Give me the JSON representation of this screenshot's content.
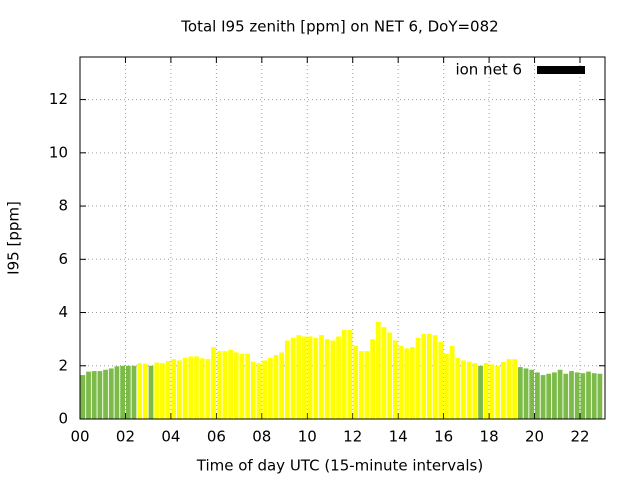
{
  "chart_data": {
    "type": "bar",
    "title": "Total I95 zenith [ppm] on NET 6, DoY=082",
    "x_label": "Time of day UTC (15-minute intervals)",
    "y_label": "I95 [ppm]",
    "x": [
      0,
      0.25,
      0.5,
      0.75,
      1,
      1.25,
      1.5,
      1.75,
      2,
      2.25,
      2.5,
      2.75,
      3,
      3.25,
      3.5,
      3.75,
      4,
      4.25,
      4.5,
      4.75,
      5,
      5.25,
      5.5,
      5.75,
      6,
      6.25,
      6.5,
      6.75,
      7,
      7.25,
      7.5,
      7.75,
      8,
      8.25,
      8.5,
      8.75,
      9,
      9.25,
      9.5,
      9.75,
      10,
      10.25,
      10.5,
      10.75,
      11,
      11.25,
      11.5,
      11.75,
      12,
      12.25,
      12.5,
      12.75,
      13,
      13.25,
      13.5,
      13.75,
      14,
      14.25,
      14.5,
      14.75,
      15,
      15.25,
      15.5,
      15.75,
      16,
      16.25,
      16.5,
      16.75,
      17,
      17.25,
      17.5,
      17.75,
      18,
      18.25,
      18.5,
      18.75,
      19,
      19.25,
      19.5,
      19.75,
      20,
      20.25,
      20.5,
      20.75,
      21,
      21.25,
      21.5,
      21.75,
      22,
      22.25,
      22.5,
      22.75
    ],
    "series": [
      {
        "name": "ion net 6",
        "color": "#000000",
        "values": [
          1.65,
          1.78,
          1.8,
          1.8,
          1.85,
          1.9,
          1.98,
          2.0,
          2.0,
          2.0,
          2.1,
          2.08,
          2.0,
          2.12,
          2.1,
          2.18,
          2.25,
          2.2,
          2.3,
          2.35,
          2.35,
          2.28,
          2.25,
          2.7,
          2.55,
          2.55,
          2.6,
          2.5,
          2.45,
          2.45,
          2.15,
          2.1,
          2.2,
          2.3,
          2.4,
          2.5,
          2.95,
          3.05,
          3.15,
          3.1,
          3.1,
          3.05,
          3.15,
          3.0,
          2.95,
          3.1,
          3.35,
          3.35,
          2.75,
          2.55,
          2.55,
          3.0,
          3.65,
          3.45,
          3.25,
          2.95,
          2.75,
          2.65,
          2.7,
          3.05,
          3.2,
          3.2,
          3.15,
          2.9,
          2.45,
          2.75,
          2.3,
          2.2,
          2.15,
          2.1,
          2.0,
          2.1,
          2.05,
          2.0,
          2.15,
          2.25,
          2.25,
          1.95,
          1.9,
          1.85,
          1.75,
          1.65,
          1.7,
          1.75,
          1.85,
          1.7,
          1.8,
          1.75,
          1.72,
          1.78,
          1.72,
          1.7
        ],
        "bar_colors": [
          "#7cbb4a",
          "#7cbb4a",
          "#7cbb4a",
          "#7cbb4a",
          "#7cbb4a",
          "#7cbb4a",
          "#7cbb4a",
          "#7cbb4a",
          "#7cbb4a",
          "#7cbb4a",
          "#ffff00",
          "#ffff00",
          "#7cbb4a",
          "#ffff00",
          "#ffff00",
          "#ffff00",
          "#ffff00",
          "#ffff00",
          "#ffff00",
          "#ffff00",
          "#ffff00",
          "#ffff00",
          "#ffff00",
          "#ffff00",
          "#ffff00",
          "#ffff00",
          "#ffff00",
          "#ffff00",
          "#ffff00",
          "#ffff00",
          "#ffff00",
          "#ffff00",
          "#ffff00",
          "#ffff00",
          "#ffff00",
          "#ffff00",
          "#ffff00",
          "#ffff00",
          "#ffff00",
          "#ffff00",
          "#ffff00",
          "#ffff00",
          "#ffff00",
          "#ffff00",
          "#ffff00",
          "#ffff00",
          "#ffff00",
          "#ffff00",
          "#ffff00",
          "#ffff00",
          "#ffff00",
          "#ffff00",
          "#ffff00",
          "#ffff00",
          "#ffff00",
          "#ffff00",
          "#ffff00",
          "#ffff00",
          "#ffff00",
          "#ffff00",
          "#ffff00",
          "#ffff00",
          "#ffff00",
          "#ffff00",
          "#ffff00",
          "#ffff00",
          "#ffff00",
          "#ffff00",
          "#ffff00",
          "#ffff00",
          "#7cbb4a",
          "#ffff00",
          "#ffff00",
          "#ffff00",
          "#ffff00",
          "#ffff00",
          "#ffff00",
          "#7cbb4a",
          "#7cbb4a",
          "#7cbb4a",
          "#7cbb4a",
          "#7cbb4a",
          "#7cbb4a",
          "#7cbb4a",
          "#7cbb4a",
          "#7cbb4a",
          "#7cbb4a",
          "#7cbb4a",
          "#7cbb4a",
          "#7cbb4a",
          "#7cbb4a",
          "#7cbb4a"
        ]
      }
    ],
    "bar_width": 0.25,
    "xlim": [
      0,
      23.1
    ],
    "ylim": [
      0,
      13.6
    ],
    "xticks": [
      {
        "value": 0,
        "label": "00"
      },
      {
        "value": 2,
        "label": "02"
      },
      {
        "value": 4,
        "label": "04"
      },
      {
        "value": 6,
        "label": "06"
      },
      {
        "value": 8,
        "label": "08"
      },
      {
        "value": 10,
        "label": "10"
      },
      {
        "value": 12,
        "label": "12"
      },
      {
        "value": 14,
        "label": "14"
      },
      {
        "value": 16,
        "label": "16"
      },
      {
        "value": 18,
        "label": "18"
      },
      {
        "value": 20,
        "label": "20"
      },
      {
        "value": 22,
        "label": "22"
      }
    ],
    "yticks": [
      0,
      2,
      4,
      6,
      8,
      10,
      12
    ],
    "grid": true,
    "legend": "top-right"
  }
}
